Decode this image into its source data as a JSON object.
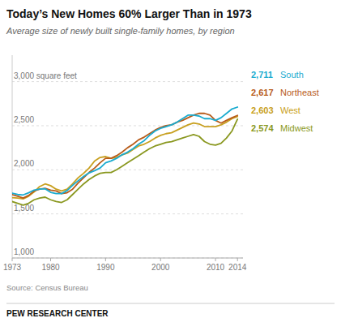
{
  "chart_data": {
    "type": "line",
    "title": "Today’s New Homes 60% Larger Than in 1973",
    "subtitle": "Average size of newly built single-family homes, by region",
    "annotations": [
      "Source: Census Bureau",
      "PEW RESEARCH CENTER"
    ],
    "x": [
      1973,
      1974,
      1975,
      1976,
      1977,
      1978,
      1979,
      1980,
      1981,
      1982,
      1983,
      1984,
      1985,
      1986,
      1987,
      1988,
      1989,
      1990,
      1991,
      1992,
      1993,
      1994,
      1995,
      1996,
      1997,
      1998,
      1999,
      2000,
      2001,
      2002,
      2003,
      2004,
      2005,
      2006,
      2007,
      2008,
      2009,
      2010,
      2011,
      2012,
      2013,
      2014
    ],
    "xlim": [
      1973,
      2015
    ],
    "xticks": [
      1973,
      1980,
      1990,
      2000,
      2010,
      2014
    ],
    "ylim": [
      1000,
      3300
    ],
    "yticks": [
      {
        "value": 1000,
        "label": "1,000"
      },
      {
        "value": 1500,
        "label": "1,500"
      },
      {
        "value": 2000,
        "label": "2,000"
      },
      {
        "value": 2500,
        "label": "2,500"
      },
      {
        "value": 3000,
        "label": "3,000 square feet"
      }
    ],
    "grid": true,
    "legend": "right",
    "series": [
      {
        "name": "South",
        "color": "#1aabcf",
        "values": [
          1735,
          1720,
          1715,
          1740,
          1770,
          1780,
          1785,
          1745,
          1730,
          1730,
          1765,
          1825,
          1875,
          1925,
          1965,
          1990,
          2020,
          2080,
          2100,
          2130,
          2170,
          2200,
          2240,
          2290,
          2330,
          2390,
          2440,
          2470,
          2490,
          2510,
          2540,
          2580,
          2620,
          2620,
          2610,
          2580,
          2580,
          2560,
          2590,
          2640,
          2690,
          2711
        ],
        "value_labels": [
          null,
          null,
          null,
          null,
          null,
          null,
          null,
          null,
          null,
          null,
          null,
          null,
          null,
          null,
          null,
          null,
          null,
          null,
          null,
          null,
          null,
          null,
          null,
          null,
          null,
          null,
          null,
          null,
          null,
          null,
          null,
          null,
          null,
          null,
          null,
          null,
          null,
          null,
          null,
          null,
          null,
          "2,711"
        ]
      },
      {
        "name": "Northeast",
        "color": "#b85c1a",
        "values": [
          1720,
          1700,
          1680,
          1710,
          1760,
          1780,
          1790,
          1770,
          1760,
          1730,
          1740,
          1780,
          1850,
          1910,
          1970,
          2020,
          2080,
          2130,
          2130,
          2160,
          2200,
          2250,
          2290,
          2340,
          2370,
          2410,
          2450,
          2480,
          2500,
          2510,
          2540,
          2560,
          2590,
          2620,
          2640,
          2640,
          2620,
          2560,
          2530,
          2560,
          2590,
          2617
        ],
        "value_labels": [
          null,
          null,
          null,
          null,
          null,
          null,
          null,
          null,
          null,
          null,
          null,
          null,
          null,
          null,
          null,
          null,
          null,
          null,
          null,
          null,
          null,
          null,
          null,
          null,
          null,
          null,
          null,
          null,
          null,
          null,
          null,
          null,
          null,
          null,
          null,
          null,
          null,
          null,
          null,
          null,
          null,
          "2,617"
        ]
      },
      {
        "name": "West",
        "color": "#c8a020",
        "values": [
          1685,
          1680,
          1670,
          1700,
          1750,
          1810,
          1840,
          1820,
          1780,
          1760,
          1780,
          1840,
          1910,
          1960,
          2020,
          2100,
          2140,
          2150,
          2130,
          2140,
          2170,
          2190,
          2230,
          2270,
          2290,
          2320,
          2360,
          2390,
          2410,
          2420,
          2450,
          2480,
          2510,
          2530,
          2520,
          2490,
          2490,
          2490,
          2510,
          2540,
          2580,
          2603
        ],
        "value_labels": [
          null,
          null,
          null,
          null,
          null,
          null,
          null,
          null,
          null,
          null,
          null,
          null,
          null,
          null,
          null,
          null,
          null,
          null,
          null,
          null,
          null,
          null,
          null,
          null,
          null,
          null,
          null,
          null,
          null,
          null,
          null,
          null,
          null,
          null,
          null,
          null,
          null,
          null,
          null,
          null,
          null,
          "2,603"
        ]
      },
      {
        "name": "Midwest",
        "color": "#8a9820",
        "values": [
          1640,
          1620,
          1600,
          1620,
          1660,
          1680,
          1690,
          1660,
          1640,
          1630,
          1660,
          1720,
          1780,
          1840,
          1890,
          1930,
          1960,
          1970,
          1970,
          2000,
          2040,
          2080,
          2120,
          2160,
          2200,
          2240,
          2270,
          2290,
          2310,
          2320,
          2340,
          2360,
          2380,
          2400,
          2380,
          2320,
          2290,
          2280,
          2300,
          2360,
          2440,
          2574
        ],
        "value_labels": [
          null,
          null,
          null,
          null,
          null,
          null,
          null,
          null,
          null,
          null,
          null,
          null,
          null,
          null,
          null,
          null,
          null,
          null,
          null,
          null,
          null,
          null,
          null,
          null,
          null,
          null,
          null,
          null,
          null,
          null,
          null,
          null,
          null,
          null,
          null,
          null,
          null,
          null,
          null,
          null,
          null,
          "2,574"
        ]
      }
    ]
  }
}
